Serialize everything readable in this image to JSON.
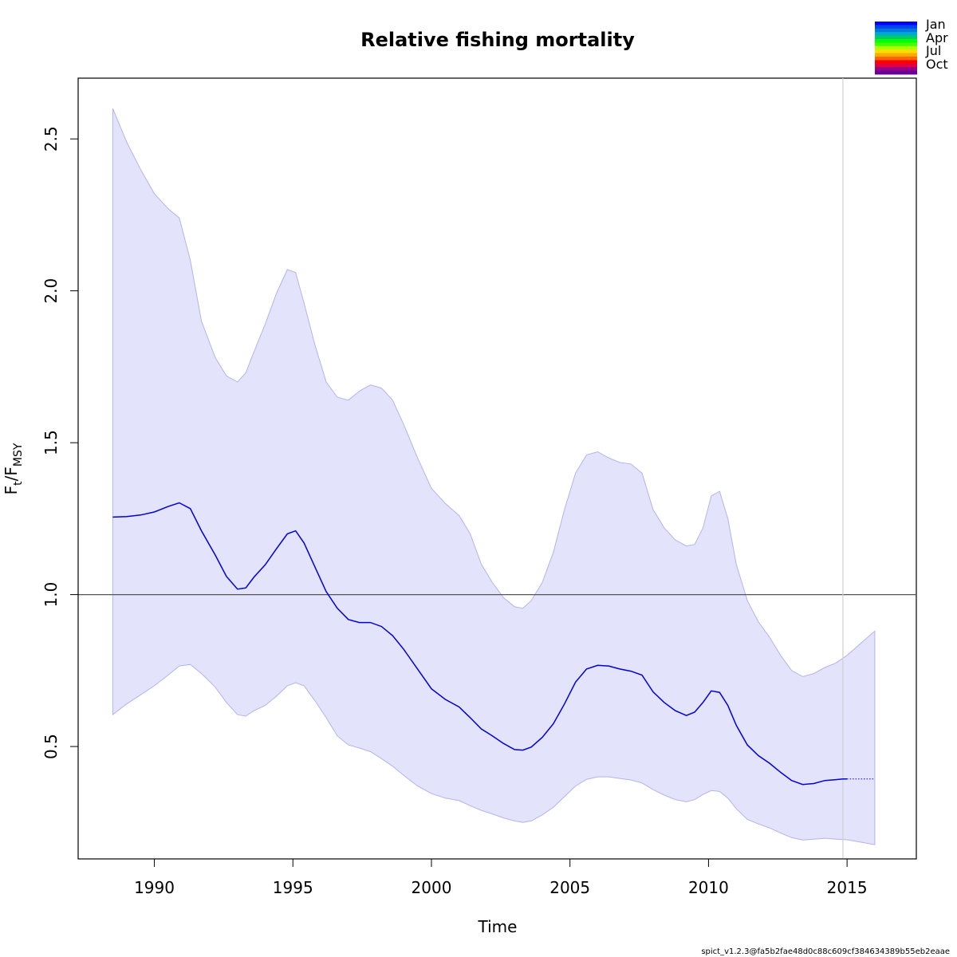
{
  "chart_data": {
    "type": "line",
    "title": "Relative fishing mortality",
    "xlabel": "Time",
    "ylabel": {
      "main": "F",
      "sub1": "t",
      "slash": "/F",
      "sub2": "MSY"
    },
    "xlim": [
      1987.25,
      2017.5
    ],
    "ylim": [
      0.13,
      2.7
    ],
    "x_ticks": [
      1990,
      1995,
      2000,
      2005,
      2010,
      2015
    ],
    "y_ticks": [
      0.5,
      1.0,
      1.5,
      2.0,
      2.5
    ],
    "y_tick_labels": [
      "0.5",
      "1.0",
      "1.5",
      "2.0",
      "2.5"
    ],
    "reference_line_y": 1.0,
    "last_observation_x": 2014.85,
    "grid": false,
    "legend_position": "top-right",
    "season_legend": {
      "labels": [
        "Jan",
        "Apr",
        "Jul",
        "Oct"
      ],
      "colors": [
        "#0000ff",
        "#0044ee",
        "#0077dd",
        "#00aacc",
        "#00cc66",
        "#00ff00",
        "#44ff00",
        "#aaff00",
        "#ffdd00",
        "#ffaa00",
        "#ff6600",
        "#ff0000",
        "#dd0044",
        "#990088",
        "#660099"
      ]
    },
    "series": [
      {
        "role": "estimate",
        "color": "#0000dd",
        "x": [
          1988.5,
          1989.0,
          1989.5,
          1990.0,
          1990.5,
          1990.9,
          1991.3,
          1991.7,
          1992.2,
          1992.6,
          1993.0,
          1993.3,
          1993.6,
          1994.0,
          1994.4,
          1994.8,
          1995.1,
          1995.4,
          1995.8,
          1996.2,
          1996.6,
          1997.0,
          1997.4,
          1997.8,
          1998.2,
          1998.6,
          1999.0,
          1999.5,
          2000.0,
          2000.5,
          2001.0,
          2001.4,
          2001.8,
          2002.2,
          2002.6,
          2003.0,
          2003.3,
          2003.6,
          2004.0,
          2004.4,
          2004.8,
          2005.2,
          2005.6,
          2006.0,
          2006.4,
          2006.8,
          2007.2,
          2007.6,
          2008.0,
          2008.4,
          2008.8,
          2009.2,
          2009.5,
          2009.8,
          2010.1,
          2010.4,
          2010.7,
          2011.0,
          2011.4,
          2011.8,
          2012.2,
          2012.6,
          2013.0,
          2013.4,
          2013.8,
          2014.2,
          2014.6,
          2014.85,
          2015.0
        ],
        "y": [
          1.255,
          1.257,
          1.262,
          1.272,
          1.29,
          1.302,
          1.283,
          1.21,
          1.13,
          1.06,
          1.018,
          1.022,
          1.058,
          1.098,
          1.15,
          1.2,
          1.21,
          1.17,
          1.09,
          1.01,
          0.955,
          0.918,
          0.908,
          0.908,
          0.895,
          0.865,
          0.82,
          0.755,
          0.69,
          0.655,
          0.63,
          0.595,
          0.558,
          0.535,
          0.51,
          0.49,
          0.488,
          0.498,
          0.53,
          0.575,
          0.64,
          0.712,
          0.755,
          0.767,
          0.765,
          0.755,
          0.748,
          0.735,
          0.68,
          0.645,
          0.618,
          0.602,
          0.613,
          0.645,
          0.683,
          0.678,
          0.635,
          0.57,
          0.505,
          0.47,
          0.445,
          0.415,
          0.388,
          0.375,
          0.378,
          0.388,
          0.391,
          0.393,
          0.393
        ]
      },
      {
        "role": "forecast",
        "color": "#0000dd",
        "dashed": true,
        "x": [
          2015.0,
          2016.0
        ],
        "y": [
          0.393,
          0.393
        ]
      }
    ],
    "confidence_band": {
      "fill": "#e3e3fb",
      "stroke": "#b3b3f0",
      "x": [
        1988.5,
        1989.0,
        1989.5,
        1990.0,
        1990.5,
        1990.9,
        1991.3,
        1991.7,
        1992.2,
        1992.6,
        1993.0,
        1993.3,
        1993.6,
        1994.0,
        1994.4,
        1994.8,
        1995.1,
        1995.4,
        1995.8,
        1996.2,
        1996.6,
        1997.0,
        1997.4,
        1997.8,
        1998.2,
        1998.6,
        1999.0,
        1999.5,
        2000.0,
        2000.5,
        2001.0,
        2001.4,
        2001.8,
        2002.2,
        2002.6,
        2003.0,
        2003.3,
        2003.6,
        2004.0,
        2004.4,
        2004.8,
        2005.2,
        2005.6,
        2006.0,
        2006.4,
        2006.8,
        2007.2,
        2007.6,
        2008.0,
        2008.4,
        2008.8,
        2009.2,
        2009.5,
        2009.8,
        2010.1,
        2010.4,
        2010.7,
        2011.0,
        2011.4,
        2011.8,
        2012.2,
        2012.6,
        2013.0,
        2013.4,
        2013.8,
        2014.2,
        2014.6,
        2015.0,
        2015.5,
        2016.0
      ],
      "upper": [
        2.6,
        2.49,
        2.4,
        2.32,
        2.27,
        2.24,
        2.1,
        1.9,
        1.78,
        1.72,
        1.7,
        1.73,
        1.8,
        1.89,
        1.99,
        2.07,
        2.06,
        1.96,
        1.82,
        1.7,
        1.65,
        1.64,
        1.67,
        1.69,
        1.68,
        1.64,
        1.56,
        1.45,
        1.35,
        1.3,
        1.26,
        1.2,
        1.1,
        1.04,
        0.99,
        0.96,
        0.955,
        0.98,
        1.04,
        1.14,
        1.28,
        1.4,
        1.46,
        1.47,
        1.45,
        1.435,
        1.43,
        1.4,
        1.28,
        1.22,
        1.18,
        1.16,
        1.165,
        1.22,
        1.325,
        1.34,
        1.25,
        1.1,
        0.98,
        0.91,
        0.86,
        0.8,
        0.75,
        0.73,
        0.74,
        0.76,
        0.775,
        0.8,
        0.84,
        0.88
      ],
      "lower": [
        0.605,
        0.64,
        0.67,
        0.7,
        0.735,
        0.765,
        0.77,
        0.74,
        0.695,
        0.645,
        0.605,
        0.6,
        0.618,
        0.635,
        0.665,
        0.7,
        0.71,
        0.7,
        0.65,
        0.595,
        0.535,
        0.505,
        0.495,
        0.483,
        0.46,
        0.435,
        0.405,
        0.37,
        0.345,
        0.33,
        0.322,
        0.305,
        0.29,
        0.278,
        0.265,
        0.255,
        0.25,
        0.255,
        0.275,
        0.3,
        0.335,
        0.37,
        0.392,
        0.4,
        0.4,
        0.395,
        0.39,
        0.38,
        0.358,
        0.34,
        0.325,
        0.318,
        0.325,
        0.342,
        0.355,
        0.352,
        0.33,
        0.295,
        0.26,
        0.245,
        0.232,
        0.215,
        0.2,
        0.192,
        0.195,
        0.198,
        0.195,
        0.193,
        0.185,
        0.177
      ]
    }
  },
  "footer_text": "spict_v1.2.3@fa5b2fae48d0c88c609cf384634389b55eb2eaae"
}
